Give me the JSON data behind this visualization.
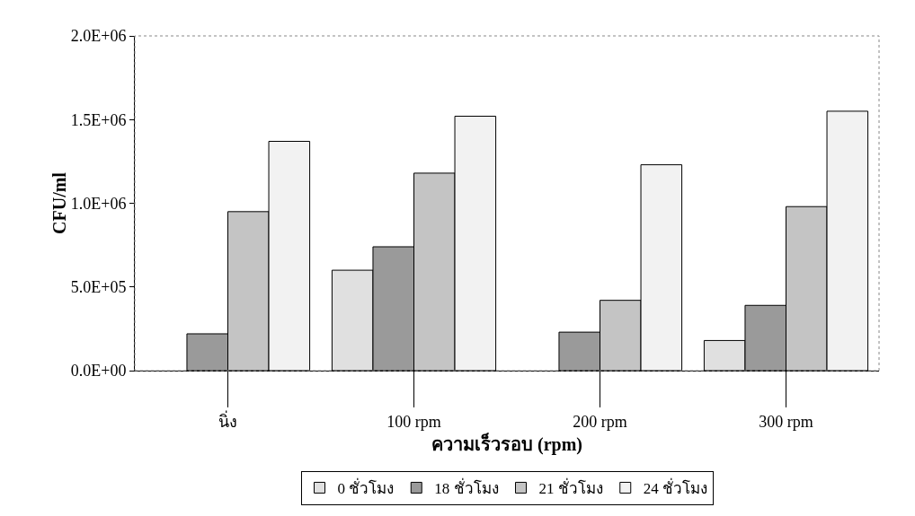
{
  "chart_data": {
    "type": "bar",
    "xlabel": "ความเร็วรอบ (rpm)",
    "ylabel": "CFU/ml",
    "categories": [
      "นิ่ง",
      "100 rpm",
      "200 rpm",
      "300 rpm"
    ],
    "series": [
      {
        "name": "0 ชั่วโมง",
        "color": "#e0e0e0",
        "values": [
          null,
          600000,
          null,
          180000
        ]
      },
      {
        "name": "18 ชั่วโมง",
        "color": "#9a9a9a",
        "values": [
          220000,
          740000,
          230000,
          390000
        ]
      },
      {
        "name": "21 ชั่วโมง",
        "color": "#c4c4c4",
        "values": [
          950000,
          1180000,
          420000,
          980000
        ]
      },
      {
        "name": "24 ชั่วโมง",
        "color": "#f2f2f2",
        "values": [
          1370000,
          1520000,
          1230000,
          1550000
        ]
      }
    ],
    "ylim": [
      0,
      2000000
    ],
    "yticks": [
      {
        "value": 0,
        "label": "0.0E+00"
      },
      {
        "value": 500000,
        "label": "5.0E+05"
      },
      {
        "value": 1000000,
        "label": "1.0E+06"
      },
      {
        "value": 1500000,
        "label": "1.5E+06"
      },
      {
        "value": 2000000,
        "label": "2.0E+06"
      }
    ],
    "grid": false,
    "legend": "bottom"
  }
}
